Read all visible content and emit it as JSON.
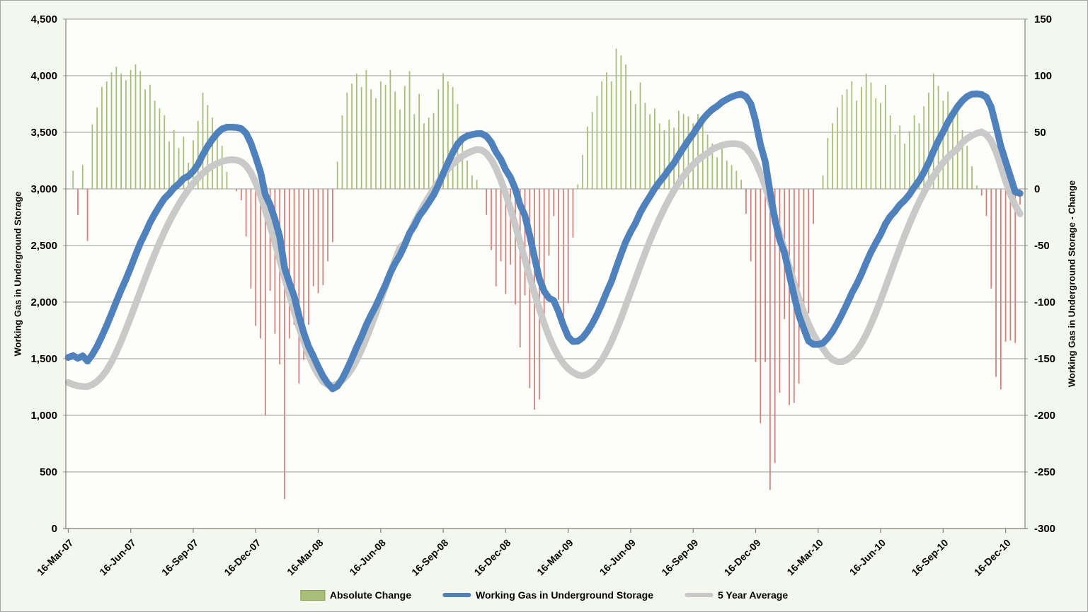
{
  "chart_data": {
    "type": "combo-bar-line",
    "frequency": "weekly",
    "colors": {
      "outer_bg": "#f4f7ee",
      "plot_bg": "#fdfef9",
      "gridline": "#9a9a9a",
      "axis": "#808080",
      "bar_positive": "#a9be78",
      "bar_negative": "#d2827d",
      "storage_line": "#4f81bd",
      "average_line": "#c9c9c9"
    },
    "x_axis": {
      "tick_labels": [
        "16-Mar-07",
        "16-Jun-07",
        "16-Sep-07",
        "16-Dec-07",
        "16-Mar-08",
        "16-Jun-08",
        "16-Sep-08",
        "16-Dec-08",
        "16-Mar-09",
        "16-Jun-09",
        "16-Sep-09",
        "16-Dec-09",
        "16-Mar-10",
        "16-Jun-10",
        "16-Sep-10",
        "16-Dec-10"
      ],
      "tick_week_indices": [
        0,
        13,
        26,
        39,
        52,
        65,
        78,
        91,
        104,
        117,
        130,
        143,
        156,
        169,
        182,
        195
      ]
    },
    "y_left": {
      "label": "Working Gas in Underground Storage",
      "min": 0,
      "max": 4500,
      "step": 500,
      "tick_values": [
        4500,
        4000,
        3500,
        3000,
        2500,
        2000,
        1500,
        1000,
        500,
        0
      ],
      "tick_labels": [
        "4,500",
        "4,000",
        "3,500",
        "3,000",
        "2,500",
        "2,000",
        "1,500",
        "1,000",
        "500",
        "0"
      ]
    },
    "y_right": {
      "label": "Working Gas in Underground Storage - Change",
      "min": -300,
      "max": 150,
      "step": 50,
      "tick_values": [
        150,
        100,
        50,
        0,
        -50,
        -100,
        -150,
        -200,
        -250,
        -300
      ],
      "tick_labels": [
        "150",
        "100",
        "50",
        "0",
        "-50",
        "-100",
        "-150",
        "-200",
        "-250",
        "-300"
      ]
    },
    "legend": {
      "position": "bottom",
      "entries": [
        "Absolute Change",
        "Working Gas in Underground Storage",
        "5 Year Average"
      ]
    },
    "series": [
      {
        "name": "Absolute Change",
        "type": "bar",
        "axis": "right",
        "color": "#a9be78",
        "negative_color": "#d2827d",
        "values": [
          null,
          16,
          -23,
          21,
          -46,
          57,
          72,
          90,
          95,
          103,
          108,
          102,
          96,
          105,
          110,
          104,
          88,
          92,
          78,
          71,
          65,
          42,
          52,
          36,
          46,
          23,
          43,
          60,
          85,
          74,
          63,
          53,
          38,
          15,
          0,
          -2,
          -10,
          -42,
          -88,
          -121,
          -132,
          -200,
          -90,
          -128,
          -155,
          -274,
          -132,
          -120,
          -172,
          -151,
          -120,
          -86,
          -92,
          -85,
          -64,
          -47,
          24,
          65,
          85,
          93,
          102,
          90,
          105,
          88,
          80,
          95,
          92,
          105,
          86,
          70,
          91,
          104,
          66,
          84,
          58,
          63,
          67,
          88,
          102,
          95,
          90,
          75,
          46,
          25,
          12,
          8,
          0,
          -23,
          -54,
          -86,
          -64,
          -93,
          -67,
          -102,
          -140,
          -94,
          -176,
          -195,
          -186,
          -112,
          -59,
          -24,
          -98,
          -120,
          -101,
          -43,
          4,
          30,
          55,
          68,
          82,
          95,
          103,
          95,
          124,
          118,
          110,
          87,
          75,
          94,
          76,
          66,
          71,
          58,
          52,
          61,
          54,
          69,
          66,
          64,
          58,
          66,
          63,
          48,
          40,
          28,
          36,
          25,
          21,
          16,
          8,
          -22,
          -64,
          -153,
          -207,
          -153,
          -266,
          -242,
          -180,
          -115,
          -191,
          -189,
          -172,
          -116,
          -110,
          -31,
          0,
          12,
          45,
          58,
          72,
          83,
          88,
          95,
          78,
          90,
          102,
          94,
          80,
          76,
          92,
          65,
          48,
          56,
          40,
          51,
          65,
          58,
          73,
          85,
          102,
          91,
          78,
          86,
          71,
          67,
          52,
          38,
          20,
          3,
          -6,
          -24,
          -88,
          -166,
          -177,
          -135,
          -134,
          -136,
          -14
        ]
      },
      {
        "name": "Working Gas in Underground Storage",
        "type": "line",
        "axis": "left",
        "color": "#4f81bd",
        "values": [
          1511,
          1527,
          1504,
          1525,
          1479,
          1536,
          1608,
          1698,
          1793,
          1896,
          2004,
          2106,
          2202,
          2307,
          2417,
          2521,
          2609,
          2701,
          2779,
          2850,
          2915,
          2957,
          3009,
          3045,
          3091,
          3114,
          3157,
          3217,
          3302,
          3376,
          3439,
          3492,
          3530,
          3545,
          3545,
          3543,
          3533,
          3491,
          3403,
          3282,
          3150,
          2950,
          2860,
          2732,
          2577,
          2303,
          2171,
          2051,
          1879,
          1728,
          1608,
          1522,
          1430,
          1345,
          1281,
          1234,
          1258,
          1323,
          1408,
          1501,
          1603,
          1693,
          1798,
          1886,
          1966,
          2061,
          2153,
          2258,
          2344,
          2414,
          2505,
          2609,
          2675,
          2759,
          2817,
          2880,
          2947,
          3035,
          3137,
          3232,
          3322,
          3397,
          3443,
          3468,
          3480,
          3488,
          3488,
          3465,
          3411,
          3325,
          3261,
          3168,
          3101,
          2999,
          2859,
          2765,
          2589,
          2394,
          2208,
          2096,
          2037,
          2013,
          1915,
          1795,
          1694,
          1651,
          1655,
          1685,
          1740,
          1808,
          1890,
          1985,
          2088,
          2183,
          2307,
          2425,
          2535,
          2622,
          2697,
          2791,
          2867,
          2933,
          3004,
          3062,
          3114,
          3175,
          3229,
          3298,
          3364,
          3428,
          3486,
          3552,
          3615,
          3663,
          3703,
          3731,
          3767,
          3792,
          3813,
          3829,
          3837,
          3815,
          3751,
          3598,
          3391,
          3238,
          2972,
          2730,
          2550,
          2435,
          2244,
          2055,
          1883,
          1767,
          1657,
          1626,
          1626,
          1638,
          1683,
          1741,
          1813,
          1896,
          1984,
          2079,
          2157,
          2247,
          2349,
          2443,
          2523,
          2599,
          2691,
          2756,
          2804,
          2860,
          2900,
          2951,
          3016,
          3074,
          3147,
          3232,
          3334,
          3425,
          3503,
          3589,
          3660,
          3727,
          3779,
          3817,
          3837,
          3840,
          3834,
          3810,
          3722,
          3556,
          3379,
          3244,
          3110,
          2974,
          2960
        ]
      },
      {
        "name": "5 Year Average",
        "type": "line",
        "axis": "left",
        "color": "#c9c9c9",
        "values": [
          1290,
          1272,
          1260,
          1255,
          1254,
          1271,
          1299,
          1341,
          1398,
          1471,
          1557,
          1654,
          1759,
          1869,
          1982,
          2096,
          2209,
          2319,
          2425,
          2525,
          2620,
          2708,
          2789,
          2864,
          2932,
          2994,
          3049,
          3097,
          3139,
          3174,
          3203,
          3225,
          3242,
          3253,
          3259,
          3255,
          3240,
          3205,
          3143,
          3053,
          2941,
          2813,
          2673,
          2525,
          2373,
          2219,
          2067,
          1919,
          1779,
          1651,
          1537,
          1439,
          1359,
          1297,
          1270,
          1262,
          1279,
          1308,
          1352,
          1412,
          1488,
          1577,
          1678,
          1787,
          1902,
          2020,
          2139,
          2257,
          2372,
          2482,
          2520,
          2610,
          2700,
          2780,
          2860,
          2930,
          3000,
          3060,
          3120,
          3175,
          3220,
          3258,
          3290,
          3315,
          3334,
          3348,
          3344,
          3314,
          3259,
          3179,
          3077,
          2957,
          2823,
          2679,
          2529,
          2377,
          2226,
          2079,
          1940,
          1812,
          1698,
          1600,
          1520,
          1458,
          1412,
          1380,
          1356,
          1348,
          1363,
          1390,
          1432,
          1490,
          1564,
          1652,
          1751,
          1858,
          1971,
          2087,
          2204,
          2320,
          2433,
          2541,
          2643,
          2739,
          2828,
          2910,
          2985,
          3053,
          3114,
          3168,
          3215,
          3255,
          3288,
          3315,
          3350,
          3370,
          3385,
          3395,
          3400,
          3398,
          3390,
          3362,
          3310,
          3234,
          3136,
          3020,
          2890,
          2750,
          2604,
          2456,
          2309,
          2167,
          2034,
          1913,
          1807,
          1717,
          1645,
          1590,
          1530,
          1492,
          1474,
          1473,
          1491,
          1523,
          1571,
          1635,
          1714,
          1806,
          1908,
          2017,
          2131,
          2247,
          2363,
          2477,
          2587,
          2692,
          2791,
          2883,
          2968,
          3045,
          3114,
          3176,
          3231,
          3279,
          3320,
          3354,
          3410,
          3445,
          3472,
          3492,
          3504,
          3479,
          3424,
          3329,
          3204,
          3069,
          2954,
          2854,
          2780
        ]
      }
    ]
  }
}
